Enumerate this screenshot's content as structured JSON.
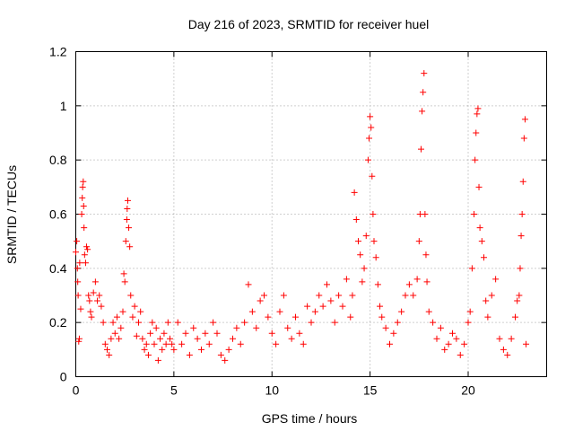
{
  "chart_data": {
    "type": "scatter",
    "title": "Day 216 of 2023, SRMTID for receiver huel",
    "xlabel": "GPS time / hours",
    "ylabel": "SRMTID / TECUs",
    "xlim": [
      0,
      24
    ],
    "ylim": [
      0,
      1.2
    ],
    "x_ticks": [
      0,
      5,
      10,
      15,
      20
    ],
    "x_tick_labels": [
      "0",
      "5",
      "10",
      "15",
      "20"
    ],
    "y_ticks": [
      0,
      0.2,
      0.4,
      0.6,
      0.8,
      1.0,
      1.2
    ],
    "y_tick_labels": [
      "0",
      "0.2",
      "0.4",
      "0.6",
      "0.8",
      "1",
      "1.2"
    ],
    "grid": true,
    "marker": "+",
    "marker_color": "#ff0000",
    "series": [
      {
        "name": "SRMTID",
        "points": [
          [
            0.0,
            0.46
          ],
          [
            0.05,
            0.5
          ],
          [
            0.08,
            0.4
          ],
          [
            0.1,
            0.35
          ],
          [
            0.12,
            0.3
          ],
          [
            0.15,
            0.13
          ],
          [
            0.18,
            0.14
          ],
          [
            0.2,
            0.42
          ],
          [
            0.25,
            0.25
          ],
          [
            0.3,
            0.6
          ],
          [
            0.33,
            0.66
          ],
          [
            0.35,
            0.7
          ],
          [
            0.38,
            0.72
          ],
          [
            0.4,
            0.63
          ],
          [
            0.42,
            0.55
          ],
          [
            0.45,
            0.45
          ],
          [
            0.5,
            0.42
          ],
          [
            0.55,
            0.48
          ],
          [
            0.6,
            0.47
          ],
          [
            0.65,
            0.3
          ],
          [
            0.7,
            0.28
          ],
          [
            0.75,
            0.24
          ],
          [
            0.8,
            0.22
          ],
          [
            0.9,
            0.31
          ],
          [
            1.0,
            0.35
          ],
          [
            1.1,
            0.28
          ],
          [
            1.2,
            0.3
          ],
          [
            1.3,
            0.26
          ],
          [
            1.4,
            0.2
          ],
          [
            1.5,
            0.12
          ],
          [
            1.6,
            0.1
          ],
          [
            1.7,
            0.08
          ],
          [
            1.8,
            0.14
          ],
          [
            1.9,
            0.2
          ],
          [
            2.0,
            0.16
          ],
          [
            2.1,
            0.22
          ],
          [
            2.2,
            0.14
          ],
          [
            2.3,
            0.18
          ],
          [
            2.4,
            0.24
          ],
          [
            2.45,
            0.38
          ],
          [
            2.5,
            0.35
          ],
          [
            2.55,
            0.5
          ],
          [
            2.6,
            0.58
          ],
          [
            2.62,
            0.62
          ],
          [
            2.65,
            0.65
          ],
          [
            2.7,
            0.55
          ],
          [
            2.75,
            0.48
          ],
          [
            2.8,
            0.3
          ],
          [
            2.9,
            0.22
          ],
          [
            3.0,
            0.26
          ],
          [
            3.1,
            0.15
          ],
          [
            3.2,
            0.2
          ],
          [
            3.3,
            0.24
          ],
          [
            3.4,
            0.14
          ],
          [
            3.5,
            0.1
          ],
          [
            3.6,
            0.12
          ],
          [
            3.7,
            0.08
          ],
          [
            3.8,
            0.16
          ],
          [
            3.9,
            0.2
          ],
          [
            4.0,
            0.12
          ],
          [
            4.1,
            0.18
          ],
          [
            4.2,
            0.06
          ],
          [
            4.3,
            0.14
          ],
          [
            4.4,
            0.1
          ],
          [
            4.5,
            0.16
          ],
          [
            4.6,
            0.12
          ],
          [
            4.7,
            0.2
          ],
          [
            4.8,
            0.14
          ],
          [
            4.9,
            0.12
          ],
          [
            5.0,
            0.1
          ],
          [
            5.2,
            0.2
          ],
          [
            5.4,
            0.12
          ],
          [
            5.6,
            0.16
          ],
          [
            5.8,
            0.08
          ],
          [
            6.0,
            0.18
          ],
          [
            6.2,
            0.14
          ],
          [
            6.4,
            0.1
          ],
          [
            6.6,
            0.16
          ],
          [
            6.8,
            0.12
          ],
          [
            7.0,
            0.2
          ],
          [
            7.2,
            0.16
          ],
          [
            7.4,
            0.08
          ],
          [
            7.6,
            0.06
          ],
          [
            7.8,
            0.1
          ],
          [
            8.0,
            0.14
          ],
          [
            8.2,
            0.18
          ],
          [
            8.4,
            0.12
          ],
          [
            8.6,
            0.2
          ],
          [
            8.8,
            0.34
          ],
          [
            9.0,
            0.24
          ],
          [
            9.2,
            0.18
          ],
          [
            9.4,
            0.28
          ],
          [
            9.6,
            0.3
          ],
          [
            9.8,
            0.22
          ],
          [
            10.0,
            0.16
          ],
          [
            10.2,
            0.12
          ],
          [
            10.4,
            0.24
          ],
          [
            10.6,
            0.3
          ],
          [
            10.8,
            0.18
          ],
          [
            11.0,
            0.14
          ],
          [
            11.2,
            0.22
          ],
          [
            11.4,
            0.16
          ],
          [
            11.6,
            0.12
          ],
          [
            11.8,
            0.26
          ],
          [
            12.0,
            0.2
          ],
          [
            12.2,
            0.24
          ],
          [
            12.4,
            0.3
          ],
          [
            12.6,
            0.26
          ],
          [
            12.8,
            0.34
          ],
          [
            13.0,
            0.28
          ],
          [
            13.2,
            0.2
          ],
          [
            13.4,
            0.3
          ],
          [
            13.6,
            0.26
          ],
          [
            13.8,
            0.36
          ],
          [
            14.0,
            0.22
          ],
          [
            14.1,
            0.3
          ],
          [
            14.2,
            0.68
          ],
          [
            14.3,
            0.58
          ],
          [
            14.4,
            0.5
          ],
          [
            14.5,
            0.45
          ],
          [
            14.6,
            0.35
          ],
          [
            14.7,
            0.4
          ],
          [
            14.8,
            0.52
          ],
          [
            14.9,
            0.8
          ],
          [
            14.95,
            0.88
          ],
          [
            15.0,
            0.96
          ],
          [
            15.05,
            0.92
          ],
          [
            15.1,
            0.74
          ],
          [
            15.15,
            0.6
          ],
          [
            15.2,
            0.5
          ],
          [
            15.3,
            0.44
          ],
          [
            15.4,
            0.34
          ],
          [
            15.5,
            0.26
          ],
          [
            15.6,
            0.22
          ],
          [
            15.8,
            0.18
          ],
          [
            16.0,
            0.12
          ],
          [
            16.2,
            0.16
          ],
          [
            16.4,
            0.2
          ],
          [
            16.6,
            0.24
          ],
          [
            16.8,
            0.3
          ],
          [
            17.0,
            0.34
          ],
          [
            17.2,
            0.3
          ],
          [
            17.4,
            0.36
          ],
          [
            17.5,
            0.5
          ],
          [
            17.55,
            0.6
          ],
          [
            17.6,
            0.84
          ],
          [
            17.65,
            0.98
          ],
          [
            17.7,
            1.05
          ],
          [
            17.75,
            1.12
          ],
          [
            17.8,
            0.6
          ],
          [
            17.85,
            0.45
          ],
          [
            17.9,
            0.35
          ],
          [
            18.0,
            0.24
          ],
          [
            18.2,
            0.2
          ],
          [
            18.4,
            0.14
          ],
          [
            18.6,
            0.18
          ],
          [
            18.8,
            0.1
          ],
          [
            19.0,
            0.12
          ],
          [
            19.2,
            0.16
          ],
          [
            19.4,
            0.14
          ],
          [
            19.6,
            0.08
          ],
          [
            19.8,
            0.12
          ],
          [
            20.0,
            0.2
          ],
          [
            20.1,
            0.24
          ],
          [
            20.2,
            0.4
          ],
          [
            20.3,
            0.6
          ],
          [
            20.35,
            0.8
          ],
          [
            20.4,
            0.9
          ],
          [
            20.45,
            0.97
          ],
          [
            20.5,
            0.99
          ],
          [
            20.55,
            0.7
          ],
          [
            20.6,
            0.55
          ],
          [
            20.7,
            0.5
          ],
          [
            20.8,
            0.44
          ],
          [
            20.9,
            0.28
          ],
          [
            21.0,
            0.22
          ],
          [
            21.2,
            0.3
          ],
          [
            21.4,
            0.36
          ],
          [
            21.6,
            0.14
          ],
          [
            21.8,
            0.1
          ],
          [
            22.0,
            0.08
          ],
          [
            22.2,
            0.14
          ],
          [
            22.4,
            0.22
          ],
          [
            22.5,
            0.28
          ],
          [
            22.6,
            0.3
          ],
          [
            22.65,
            0.4
          ],
          [
            22.7,
            0.52
          ],
          [
            22.75,
            0.6
          ],
          [
            22.8,
            0.72
          ],
          [
            22.85,
            0.88
          ],
          [
            22.9,
            0.95
          ],
          [
            22.95,
            0.12
          ]
        ]
      }
    ]
  }
}
